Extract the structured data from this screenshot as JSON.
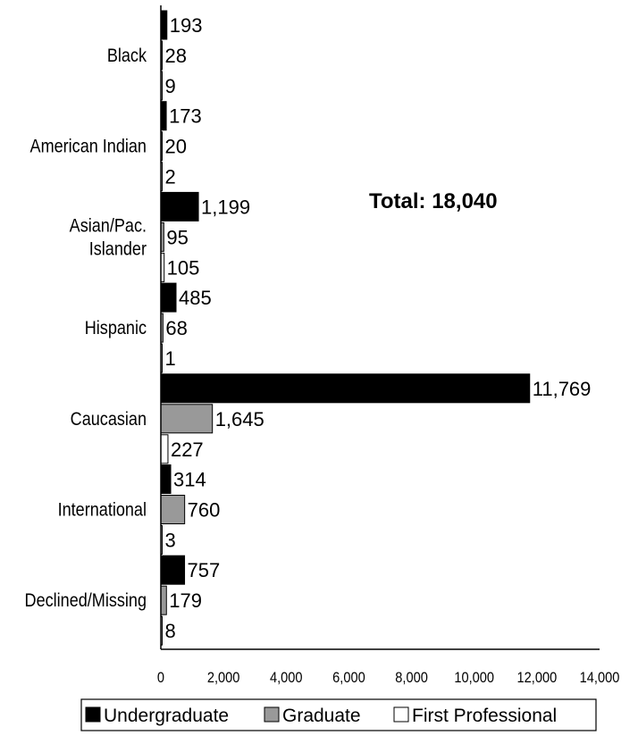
{
  "chart_data": {
    "type": "bar",
    "orientation": "horizontal",
    "categories": [
      "Black",
      "American Indian",
      "Asian/Pac. Islander",
      "Hispanic",
      "Caucasian",
      "International",
      "Declined/Missing"
    ],
    "category_lines": [
      [
        "Black"
      ],
      [
        "American Indian"
      ],
      [
        "Asian/Pac.",
        "Islander"
      ],
      [
        "Hispanic"
      ],
      [
        "Caucasian"
      ],
      [
        "International"
      ],
      [
        "Declined/Missing"
      ]
    ],
    "series": [
      {
        "name": "Undergraduate",
        "color": "#000000",
        "values": [
          193,
          173,
          1199,
          485,
          11769,
          314,
          757
        ],
        "labels": [
          "193",
          "173",
          "1,199",
          "485",
          "11,769",
          "314",
          "757"
        ]
      },
      {
        "name": "Graduate",
        "color": "#999999",
        "values": [
          28,
          20,
          95,
          68,
          1645,
          760,
          179
        ],
        "labels": [
          "28",
          "20",
          "95",
          "68",
          "1,645",
          "760",
          "179"
        ]
      },
      {
        "name": "First Professional",
        "color": "#ffffff",
        "values": [
          9,
          2,
          105,
          1,
          227,
          3,
          8
        ],
        "labels": [
          "9",
          "2",
          "105",
          "1",
          "227",
          "3",
          "8"
        ]
      }
    ],
    "xlim": [
      0,
      14000
    ],
    "x_ticks": [
      0,
      2000,
      4000,
      6000,
      8000,
      10000,
      12000,
      14000
    ],
    "x_tick_labels": [
      "0",
      "2,000",
      "4,000",
      "6,000",
      "8,000",
      "10,000",
      "12,000",
      "14,000"
    ],
    "annotation": "Total: 18,040",
    "grid": false,
    "legend_position": "bottom"
  }
}
